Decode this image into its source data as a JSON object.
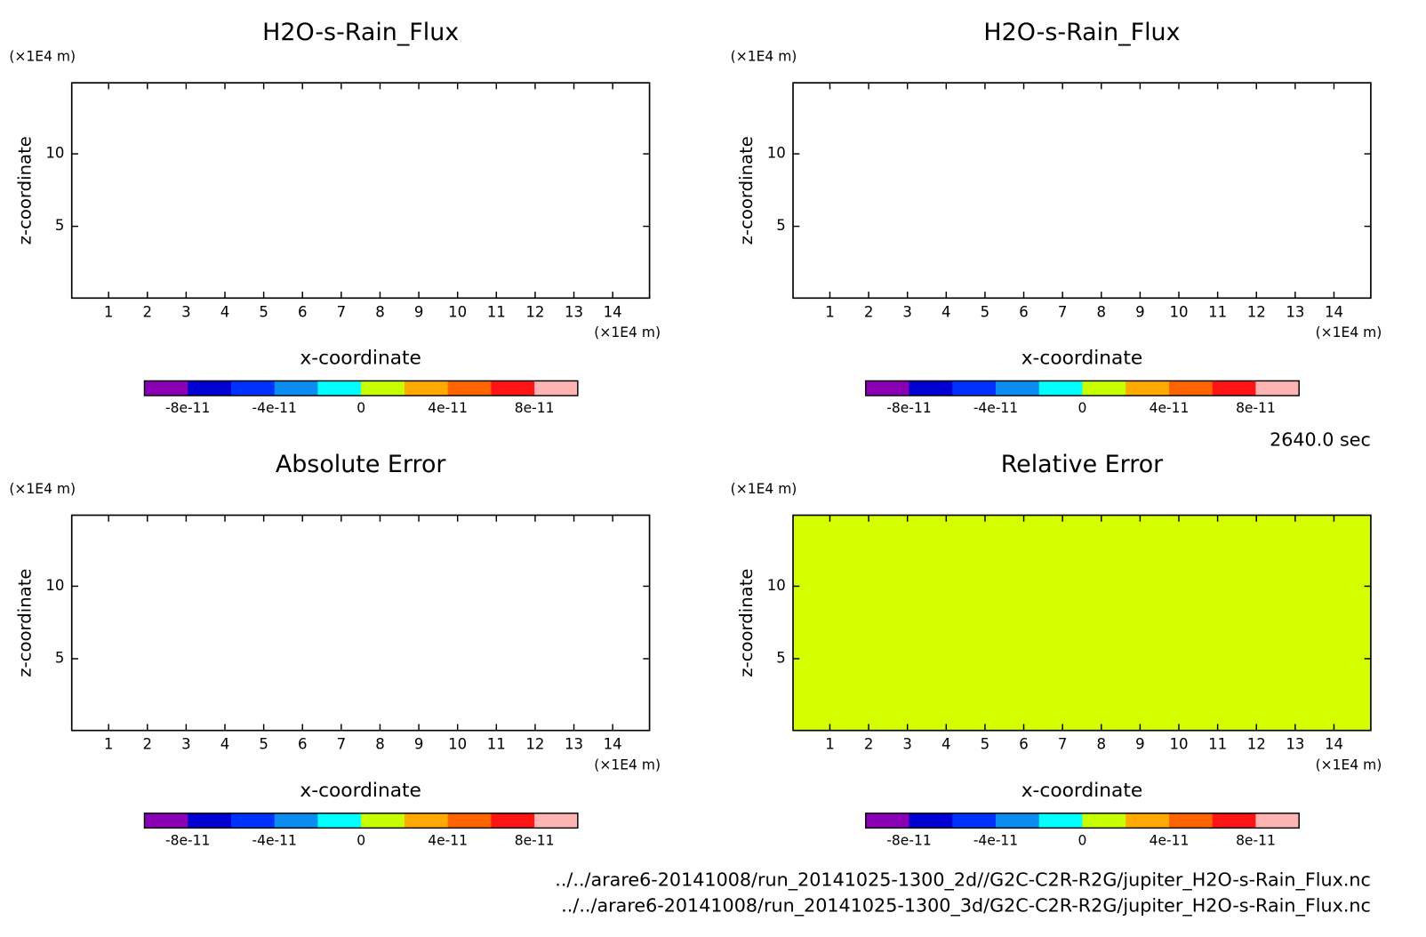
{
  "chart_data": [
    {
      "type": "field",
      "title": "H2O-s-Rain_Flux",
      "x_label": "x-coordinate",
      "y_label": "z-coordinate",
      "x_unit": "(×1E4 m)",
      "y_unit": "(×1E4 m)",
      "xlim": [
        0.05,
        14.95
      ],
      "ylim": [
        0.05,
        14.9
      ],
      "xticks": [
        1,
        2,
        3,
        4,
        5,
        6,
        7,
        8,
        9,
        10,
        11,
        12,
        13,
        14
      ],
      "yticks": [
        5,
        10
      ],
      "fill_color": null,
      "colorbar": {
        "lim": [
          -1e-10,
          1e-10
        ],
        "ticks": [
          -8e-11,
          -4e-11,
          0,
          4e-11,
          8e-11
        ],
        "colors": [
          "#8a00b4",
          "#0000d2",
          "#0032ff",
          "#0a8cf0",
          "#00ffff",
          "#c8ff00",
          "#ffaa00",
          "#ff6400",
          "#ff1414",
          "#ffb4b4"
        ]
      }
    },
    {
      "type": "field",
      "title": "H2O-s-Rain_Flux",
      "x_label": "x-coordinate",
      "y_label": "z-coordinate",
      "x_unit": "(×1E4 m)",
      "y_unit": "(×1E4 m)",
      "xlim": [
        0.05,
        14.95
      ],
      "ylim": [
        0.05,
        14.9
      ],
      "xticks": [
        1,
        2,
        3,
        4,
        5,
        6,
        7,
        8,
        9,
        10,
        11,
        12,
        13,
        14
      ],
      "yticks": [
        5,
        10
      ],
      "fill_color": null,
      "colorbar": {
        "lim": [
          -1e-10,
          1e-10
        ],
        "ticks": [
          -8e-11,
          -4e-11,
          0,
          4e-11,
          8e-11
        ],
        "colors": [
          "#8a00b4",
          "#0000d2",
          "#0032ff",
          "#0a8cf0",
          "#00ffff",
          "#c8ff00",
          "#ffaa00",
          "#ff6400",
          "#ff1414",
          "#ffb4b4"
        ]
      }
    },
    {
      "type": "field",
      "title": "Absolute Error",
      "x_label": "x-coordinate",
      "y_label": "z-coordinate",
      "x_unit": "(×1E4 m)",
      "y_unit": "(×1E4 m)",
      "xlim": [
        0.05,
        14.95
      ],
      "ylim": [
        0.05,
        14.9
      ],
      "xticks": [
        1,
        2,
        3,
        4,
        5,
        6,
        7,
        8,
        9,
        10,
        11,
        12,
        13,
        14
      ],
      "yticks": [
        5,
        10
      ],
      "fill_color": null,
      "colorbar": {
        "lim": [
          -1e-10,
          1e-10
        ],
        "ticks": [
          -8e-11,
          -4e-11,
          0,
          4e-11,
          8e-11
        ],
        "colors": [
          "#8a00b4",
          "#0000d2",
          "#0032ff",
          "#0a8cf0",
          "#00ffff",
          "#c8ff00",
          "#ffaa00",
          "#ff6400",
          "#ff1414",
          "#ffb4b4"
        ]
      }
    },
    {
      "type": "field",
      "title": "Relative Error",
      "x_label": "x-coordinate",
      "y_label": "z-coordinate",
      "x_unit": "(×1E4 m)",
      "y_unit": "(×1E4 m)",
      "xlim": [
        0.05,
        14.95
      ],
      "ylim": [
        0.05,
        14.9
      ],
      "xticks": [
        1,
        2,
        3,
        4,
        5,
        6,
        7,
        8,
        9,
        10,
        11,
        12,
        13,
        14
      ],
      "yticks": [
        5,
        10
      ],
      "fill_color": "#d4ff00",
      "colorbar": {
        "lim": [
          -1e-10,
          1e-10
        ],
        "ticks": [
          -8e-11,
          -4e-11,
          0,
          4e-11,
          8e-11
        ],
        "colors": [
          "#8a00b4",
          "#0000d2",
          "#0032ff",
          "#0a8cf0",
          "#00ffff",
          "#c8ff00",
          "#ffaa00",
          "#ff6400",
          "#ff1414",
          "#ffb4b4"
        ]
      }
    }
  ],
  "time_label": "2640.0 sec",
  "files": [
    "../../arare6-20141008/run_20141025-1300_2d//G2C-C2R-R2G/jupiter_H2O-s-Rain_Flux.nc",
    "../../arare6-20141008/run_20141025-1300_3d/G2C-C2R-R2G/jupiter_H2O-s-Rain_Flux.nc"
  ]
}
